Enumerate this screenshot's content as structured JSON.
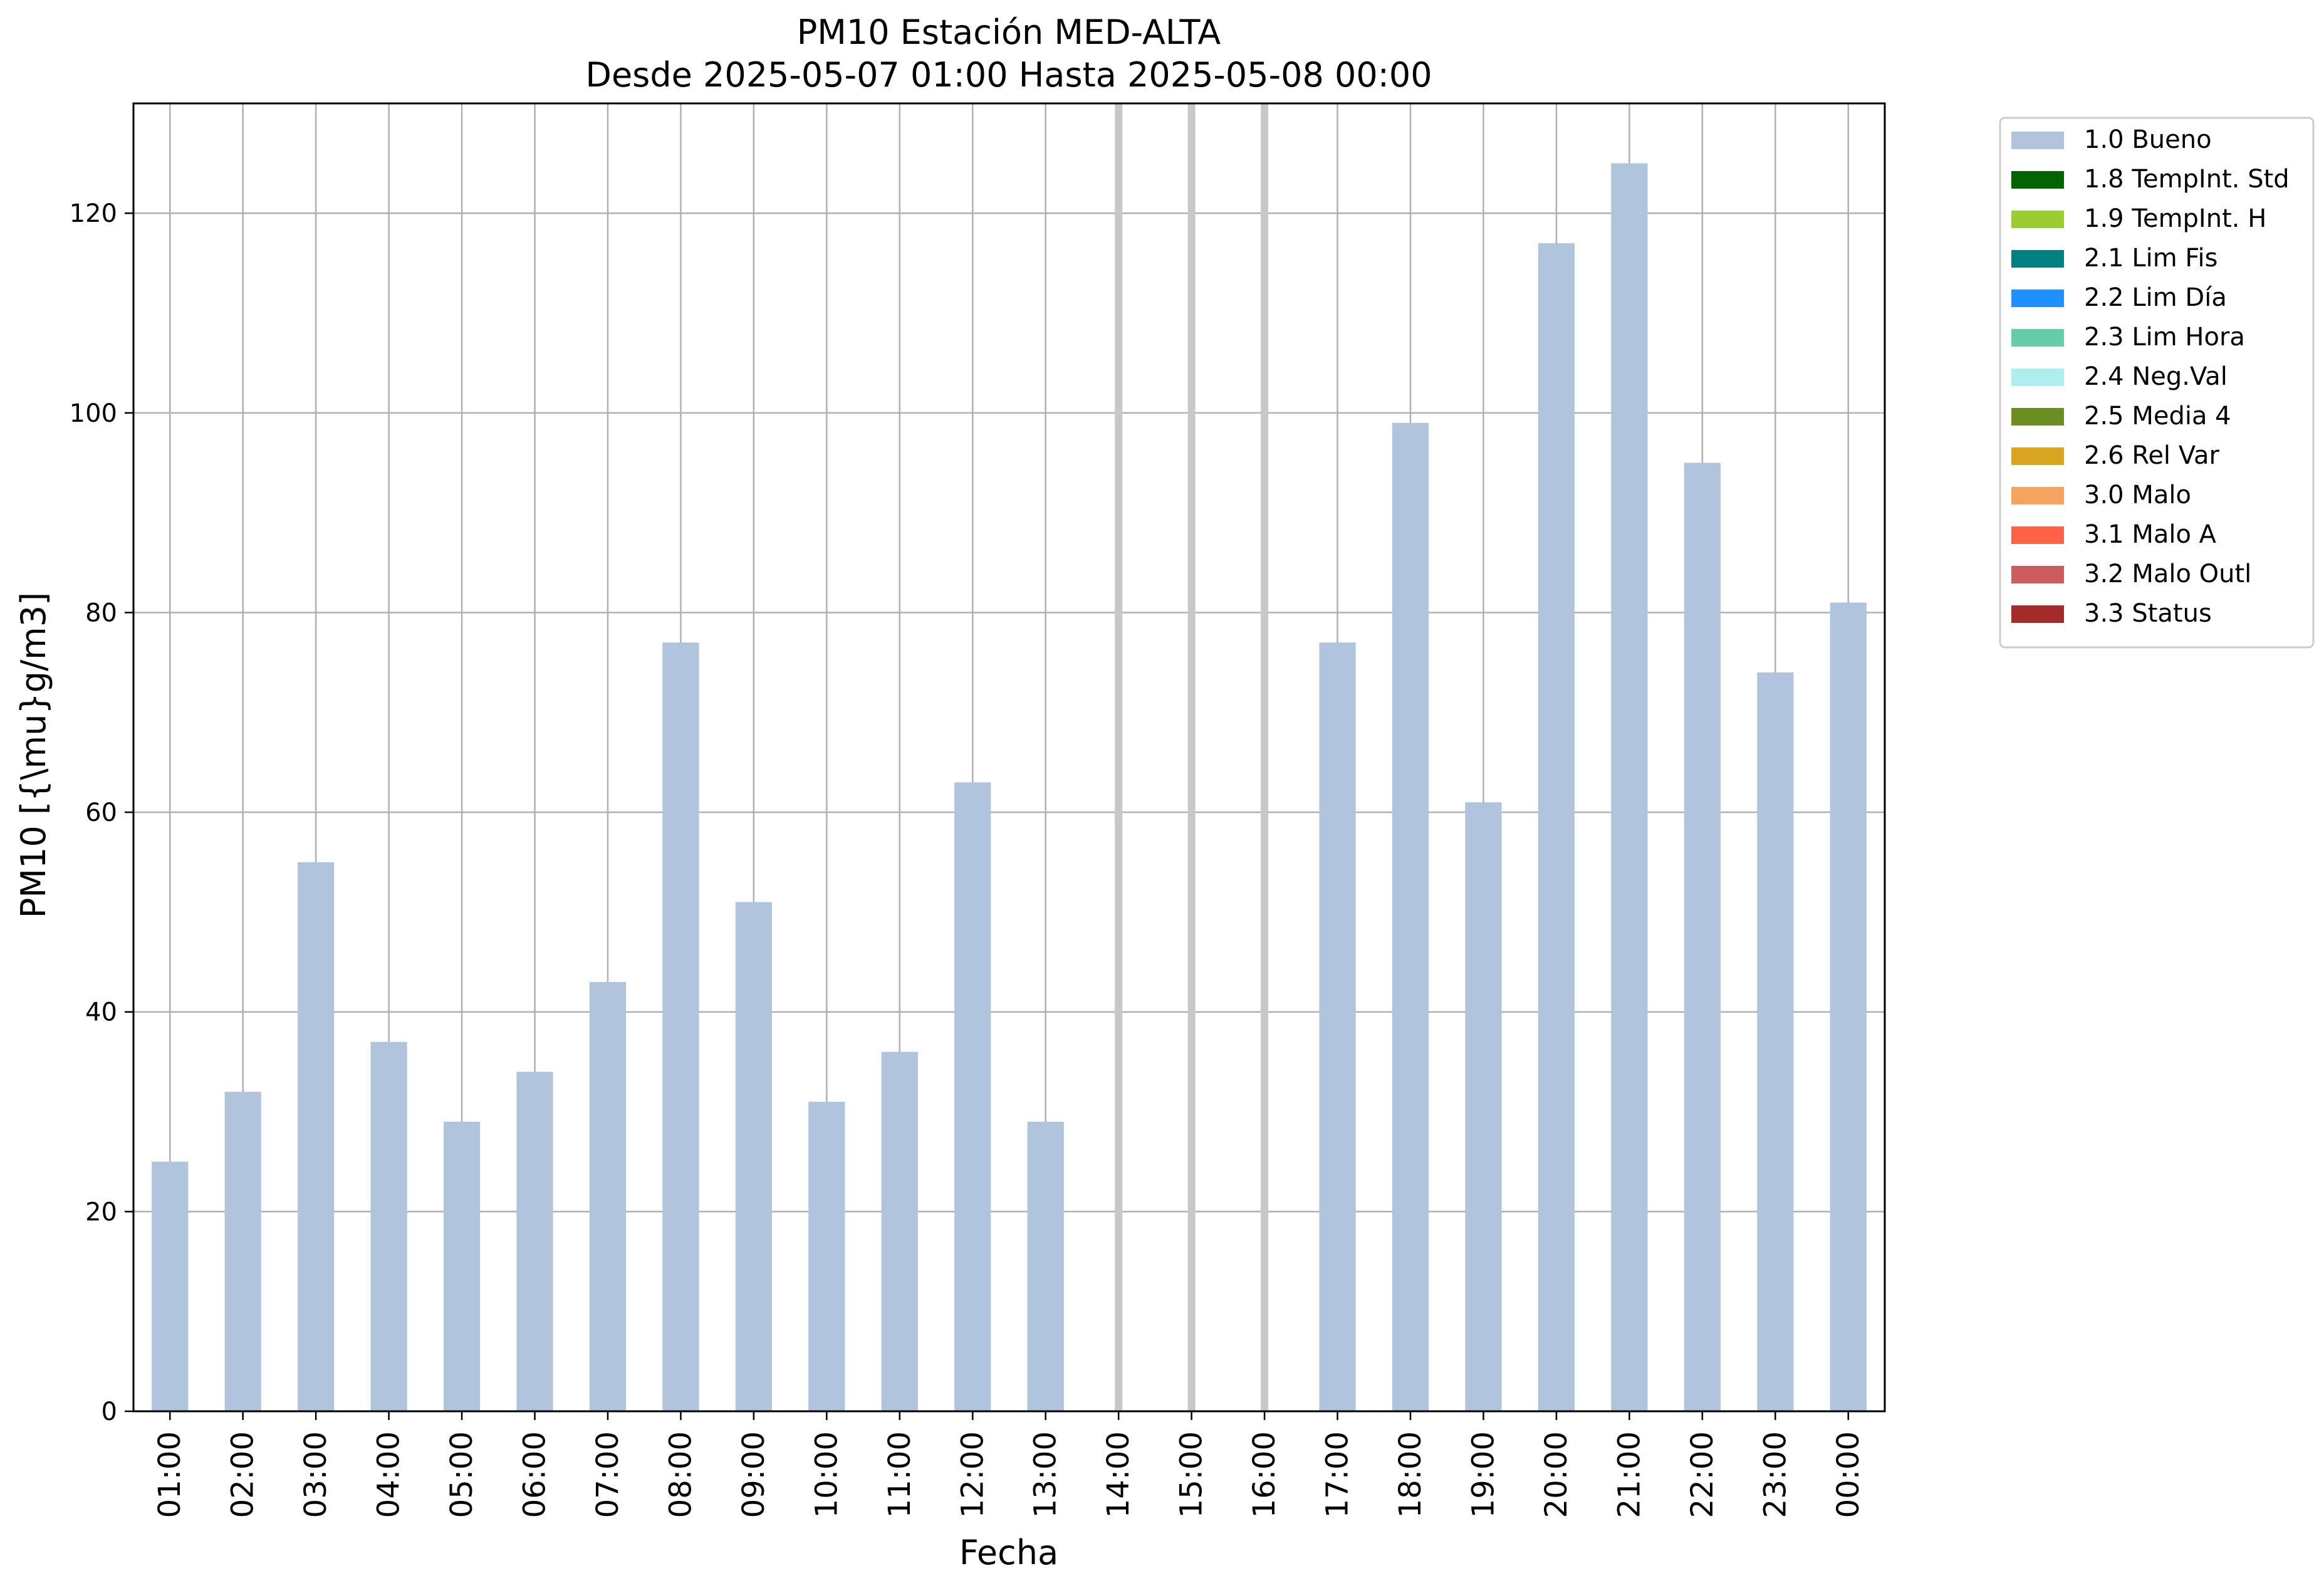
{
  "chart_data": {
    "type": "bar",
    "title_line1": "PM10 Estación MED-ALTA",
    "title_line2": "Desde 2025-05-07 01:00 Hasta 2025-05-08 00:00",
    "xlabel": "Fecha",
    "ylabel": "PM10 [{\\mu}g/m3]",
    "ylim": [
      0,
      131
    ],
    "yticks": [
      0,
      20,
      40,
      60,
      80,
      100,
      120
    ],
    "grid": true,
    "legend_position": "outside-top-right",
    "categories": [
      "01:00",
      "02:00",
      "03:00",
      "04:00",
      "05:00",
      "06:00",
      "07:00",
      "08:00",
      "09:00",
      "10:00",
      "11:00",
      "12:00",
      "13:00",
      "14:00",
      "15:00",
      "16:00",
      "17:00",
      "18:00",
      "19:00",
      "20:00",
      "21:00",
      "22:00",
      "23:00",
      "00:00"
    ],
    "series": [
      {
        "name": "1.0 Bueno",
        "color": "#b0c4de",
        "values": [
          25,
          32,
          55,
          37,
          29,
          34,
          43,
          77,
          51,
          31,
          36,
          63,
          29,
          null,
          null,
          null,
          77,
          99,
          61,
          117,
          125,
          95,
          74,
          81
        ]
      }
    ],
    "missing_marker_color": "#c8c8c8",
    "legend": [
      {
        "label": "1.0 Bueno",
        "color": "#b0c4de"
      },
      {
        "label": "1.8 TempInt. Std",
        "color": "#006400"
      },
      {
        "label": "1.9 TempInt. H",
        "color": "#9acd32"
      },
      {
        "label": "2.1 Lim Fis",
        "color": "#008080"
      },
      {
        "label": "2.2 Lim Día",
        "color": "#1e90ff"
      },
      {
        "label": "2.3 Lim Hora",
        "color": "#66cdaa"
      },
      {
        "label": "2.4 Neg.Val",
        "color": "#afeeee"
      },
      {
        "label": "2.5 Media 4",
        "color": "#6b8e23"
      },
      {
        "label": "2.6 Rel Var",
        "color": "#daa520"
      },
      {
        "label": "3.0 Malo",
        "color": "#f4a460"
      },
      {
        "label": "3.1 Malo A",
        "color": "#ff6347"
      },
      {
        "label": "3.2 Malo Outl",
        "color": "#cd5c5c"
      },
      {
        "label": "3.3 Status",
        "color": "#a52a2a"
      }
    ]
  }
}
